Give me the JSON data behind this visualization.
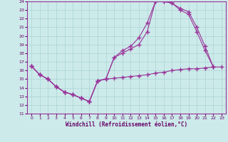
{
  "xlabel": "Windchill (Refroidissement éolien,°C)",
  "xlim": [
    -0.5,
    23.5
  ],
  "ylim": [
    11,
    24
  ],
  "xticks": [
    0,
    1,
    2,
    3,
    4,
    5,
    6,
    7,
    8,
    9,
    10,
    11,
    12,
    13,
    14,
    15,
    16,
    17,
    18,
    19,
    20,
    21,
    22,
    23
  ],
  "yticks": [
    11,
    12,
    13,
    14,
    15,
    16,
    17,
    18,
    19,
    20,
    21,
    22,
    23,
    24
  ],
  "bg_color": "#cdeaea",
  "line_color": "#993399",
  "grid_color": "#aad4d4",
  "line1_x": [
    0,
    1,
    2,
    3,
    4,
    5,
    6,
    7,
    8,
    9,
    10,
    11,
    12,
    13,
    14,
    15,
    16,
    17,
    18,
    19,
    20,
    21,
    22,
    23
  ],
  "line1_y": [
    16.5,
    15.5,
    15.0,
    14.1,
    13.5,
    13.2,
    12.8,
    12.4,
    14.8,
    15.0,
    15.1,
    15.2,
    15.3,
    15.4,
    15.5,
    15.7,
    15.8,
    16.0,
    16.1,
    16.2,
    16.2,
    16.3,
    16.4,
    16.4
  ],
  "line2_x": [
    0,
    1,
    2,
    3,
    4,
    5,
    6,
    7,
    8,
    9,
    10,
    11,
    12,
    13,
    14,
    15,
    16,
    17,
    18,
    19,
    20,
    21,
    22
  ],
  "line2_y": [
    16.5,
    15.5,
    15.0,
    14.1,
    13.5,
    13.2,
    12.8,
    12.4,
    14.8,
    15.0,
    17.5,
    18.0,
    18.5,
    19.0,
    20.5,
    24.0,
    24.0,
    23.8,
    23.0,
    22.5,
    20.5,
    18.3,
    16.4
  ],
  "line3_x": [
    0,
    1,
    2,
    3,
    4,
    5,
    6,
    7,
    8,
    9,
    10,
    11,
    12,
    13,
    14,
    15,
    16,
    17,
    18,
    19,
    20,
    21,
    22
  ],
  "line3_y": [
    16.5,
    15.5,
    15.0,
    14.1,
    13.5,
    13.2,
    12.8,
    12.4,
    14.8,
    15.0,
    17.5,
    18.3,
    18.8,
    19.8,
    21.5,
    24.0,
    24.0,
    23.8,
    23.2,
    22.8,
    21.0,
    18.8,
    16.4
  ]
}
